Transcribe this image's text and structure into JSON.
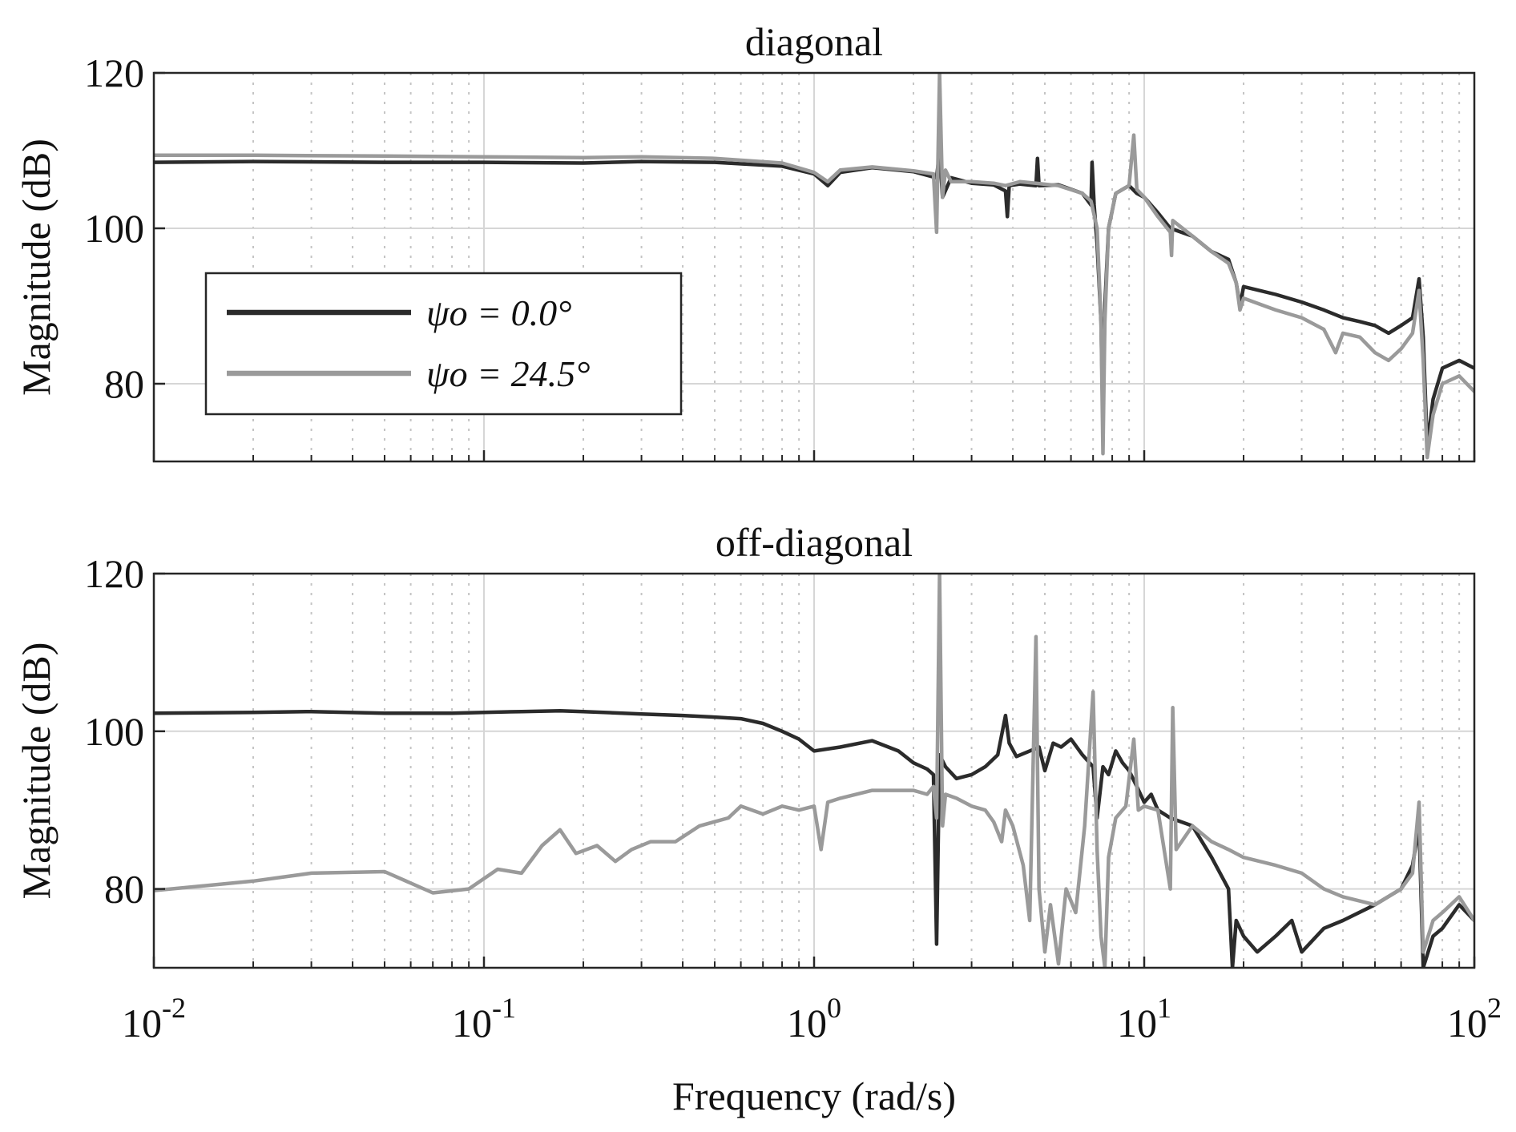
{
  "chart_data": [
    {
      "type": "line",
      "title": "diagonal",
      "xlabel": "",
      "ylabel": "Magnitude (dB)",
      "xscale": "log",
      "xlim": [
        0.01,
        100
      ],
      "ylim": [
        70,
        120
      ],
      "xticks": [
        0.01,
        0.1,
        1,
        10,
        100
      ],
      "xtick_labels": [],
      "yticks": [
        80,
        100,
        120
      ],
      "ytick_labels": [
        "80",
        "100",
        "120"
      ],
      "grid": true,
      "minor_grid": true,
      "legend": {
        "placement": "middle-left",
        "entries": [
          "ψo = 0.0°",
          "ψo = 24.5°"
        ]
      },
      "series": [
        {
          "name": "ψo = 0.0°",
          "color": "#2b2b2b",
          "x": [
            0.01,
            0.02,
            0.05,
            0.1,
            0.2,
            0.3,
            0.5,
            0.8,
            1.0,
            1.1,
            1.2,
            1.5,
            2.0,
            2.35,
            2.4,
            2.45,
            2.6,
            3.0,
            3.5,
            3.8,
            3.85,
            3.9,
            4.2,
            4.7,
            4.75,
            4.8,
            5.5,
            6.5,
            6.9,
            6.95,
            7.05,
            7.2,
            7.4,
            7.5,
            7.6,
            7.8,
            8.2,
            9.0,
            9.5,
            10.0,
            11.0,
            12.0,
            14.0,
            16.0,
            18.0,
            19.0,
            19.5,
            20.0,
            25.0,
            30.0,
            35.0,
            40.0,
            45.0,
            50.0,
            55.0,
            60.0,
            65.0,
            68.0,
            70.0,
            72.0,
            75.0,
            80.0,
            90.0,
            100.0
          ],
          "y": [
            108.5,
            108.6,
            108.5,
            108.5,
            108.4,
            108.6,
            108.5,
            108.0,
            107.0,
            105.5,
            107.2,
            107.8,
            107.3,
            106.5,
            110.0,
            104.0,
            106.5,
            105.8,
            105.6,
            104.8,
            101.5,
            105.5,
            105.7,
            105.5,
            109.0,
            105.5,
            105.6,
            104.5,
            103.0,
            108.5,
            103.0,
            98.0,
            88.0,
            75.0,
            90.0,
            100.0,
            104.5,
            105.5,
            104.5,
            104.0,
            102.0,
            100.0,
            99.0,
            97.0,
            96.0,
            93.0,
            90.0,
            92.5,
            91.5,
            90.5,
            89.5,
            88.5,
            88.0,
            87.5,
            86.5,
            87.5,
            88.5,
            93.5,
            86.0,
            72.0,
            78.0,
            82.0,
            83.0,
            82.0
          ]
        },
        {
          "name": "ψo = 24.5°",
          "color": "#9a9a9a",
          "x": [
            0.01,
            0.02,
            0.05,
            0.1,
            0.2,
            0.3,
            0.5,
            0.8,
            1.0,
            1.1,
            1.2,
            1.5,
            2.0,
            2.3,
            2.35,
            2.4,
            2.45,
            2.5,
            2.6,
            3.0,
            3.5,
            3.8,
            4.2,
            4.7,
            5.5,
            6.5,
            6.9,
            7.2,
            7.4,
            7.5,
            7.6,
            7.8,
            8.2,
            9.0,
            9.3,
            9.5,
            10.0,
            11.0,
            12.0,
            12.1,
            12.2,
            14.0,
            16.0,
            18.0,
            19.0,
            19.5,
            20.0,
            25.0,
            30.0,
            35.0,
            38.0,
            40.0,
            45.0,
            50.0,
            55.0,
            60.0,
            65.0,
            68.0,
            70.0,
            72.0,
            75.0,
            80.0,
            90.0,
            100.0
          ],
          "y": [
            109.4,
            109.4,
            109.3,
            109.2,
            109.1,
            109.2,
            109.0,
            108.4,
            107.2,
            106.0,
            107.5,
            107.9,
            107.4,
            107.0,
            99.5,
            120.0,
            104.0,
            107.5,
            106.0,
            106.0,
            105.8,
            105.5,
            106.0,
            105.8,
            105.5,
            104.5,
            103.5,
            100.0,
            88.0,
            71.0,
            88.0,
            100.0,
            104.5,
            105.5,
            112.0,
            105.0,
            104.0,
            101.5,
            99.5,
            96.5,
            101.0,
            99.0,
            97.0,
            95.5,
            93.0,
            89.5,
            91.0,
            89.5,
            88.5,
            87.0,
            84.0,
            86.5,
            86.0,
            84.0,
            83.0,
            84.5,
            86.5,
            92.0,
            83.0,
            70.5,
            76.0,
            80.0,
            81.0,
            79.0
          ]
        }
      ]
    },
    {
      "type": "line",
      "title": "off-diagonal",
      "xlabel": "Frequency (rad/s)",
      "ylabel": "Magnitude (dB)",
      "xscale": "log",
      "xlim": [
        0.01,
        100
      ],
      "ylim": [
        70,
        120
      ],
      "xticks": [
        0.01,
        0.1,
        1,
        10,
        100
      ],
      "xtick_labels": [
        {
          "base": "10",
          "exp": "-2"
        },
        {
          "base": "10",
          "exp": "-1"
        },
        {
          "base": "10",
          "exp": "0"
        },
        {
          "base": "10",
          "exp": "1"
        },
        {
          "base": "10",
          "exp": "2"
        }
      ],
      "yticks": [
        80,
        100,
        120
      ],
      "ytick_labels": [
        "80",
        "100",
        "120"
      ],
      "grid": true,
      "minor_grid": true,
      "series": [
        {
          "name": "ψo = 0.0°",
          "color": "#2b2b2b",
          "x": [
            0.01,
            0.02,
            0.03,
            0.05,
            0.08,
            0.1,
            0.13,
            0.17,
            0.2,
            0.3,
            0.4,
            0.5,
            0.6,
            0.7,
            0.8,
            0.9,
            1.0,
            1.2,
            1.5,
            1.8,
            2.0,
            2.2,
            2.3,
            2.35,
            2.4,
            2.5,
            2.7,
            3.0,
            3.3,
            3.6,
            3.8,
            3.9,
            4.1,
            4.5,
            4.8,
            5.0,
            5.3,
            5.6,
            6.0,
            6.5,
            7.0,
            7.2,
            7.5,
            7.8,
            8.2,
            8.6,
            9.0,
            9.5,
            10.0,
            10.5,
            11.0,
            12.0,
            14.0,
            16.0,
            18.0,
            18.5,
            19.0,
            20.0,
            22.0,
            25.0,
            28.0,
            30.0,
            35.0,
            40.0,
            50.0,
            60.0,
            65.0,
            68.0,
            70.0,
            75.0,
            80.0,
            90.0,
            100.0
          ],
          "y": [
            102.3,
            102.4,
            102.5,
            102.3,
            102.3,
            102.4,
            102.5,
            102.6,
            102.5,
            102.2,
            102.0,
            101.8,
            101.6,
            101.0,
            100.0,
            99.0,
            97.5,
            98.0,
            98.8,
            97.5,
            96.0,
            95.2,
            94.5,
            73.0,
            97.0,
            95.5,
            94.0,
            94.5,
            95.5,
            97.0,
            102.0,
            98.5,
            96.8,
            97.5,
            98.0,
            95.0,
            98.5,
            98.0,
            99.0,
            97.0,
            95.5,
            89.0,
            95.5,
            94.5,
            97.5,
            96.0,
            95.0,
            93.0,
            91.0,
            92.0,
            90.0,
            89.0,
            88.0,
            84.0,
            80.0,
            70.0,
            76.0,
            74.0,
            72.0,
            74.0,
            76.0,
            72.0,
            75.0,
            76.0,
            78.0,
            80.0,
            83.0,
            88.0,
            70.0,
            74.0,
            75.0,
            78.0,
            76.0
          ]
        },
        {
          "name": "ψo = 24.5°",
          "color": "#9a9a9a",
          "x": [
            0.01,
            0.02,
            0.03,
            0.05,
            0.07,
            0.09,
            0.11,
            0.13,
            0.15,
            0.17,
            0.19,
            0.22,
            0.25,
            0.28,
            0.32,
            0.38,
            0.45,
            0.55,
            0.6,
            0.7,
            0.8,
            0.9,
            1.0,
            1.05,
            1.1,
            1.2,
            1.5,
            2.0,
            2.2,
            2.3,
            2.35,
            2.4,
            2.45,
            2.5,
            2.7,
            3.0,
            3.3,
            3.5,
            3.7,
            3.8,
            4.0,
            4.3,
            4.5,
            4.7,
            4.8,
            5.0,
            5.2,
            5.5,
            5.8,
            6.2,
            6.6,
            7.0,
            7.2,
            7.4,
            7.6,
            7.8,
            8.2,
            8.8,
            9.3,
            9.6,
            10.0,
            11.0,
            12.0,
            12.2,
            12.5,
            14.0,
            16.0,
            18.0,
            20.0,
            25.0,
            30.0,
            35.0,
            40.0,
            50.0,
            60.0,
            65.0,
            68.0,
            70.0,
            75.0,
            80.0,
            90.0,
            100.0
          ],
          "y": [
            79.8,
            81.0,
            82.0,
            82.2,
            79.5,
            80.0,
            82.5,
            82.0,
            85.5,
            87.5,
            84.5,
            85.5,
            83.5,
            85.0,
            86.0,
            86.0,
            88.0,
            89.0,
            90.5,
            89.5,
            90.5,
            90.0,
            90.5,
            85.0,
            91.0,
            91.5,
            92.5,
            92.5,
            92.0,
            93.0,
            89.0,
            120.0,
            88.0,
            92.0,
            91.5,
            90.5,
            90.0,
            88.5,
            86.0,
            90.0,
            88.0,
            83.0,
            76.0,
            112.0,
            80.0,
            72.0,
            78.0,
            70.5,
            80.0,
            77.0,
            88.0,
            105.0,
            85.0,
            74.0,
            70.0,
            84.0,
            89.0,
            90.5,
            99.0,
            90.0,
            90.5,
            90.0,
            80.0,
            103.0,
            85.0,
            88.0,
            86.0,
            85.0,
            84.0,
            83.0,
            82.0,
            80.0,
            79.0,
            78.0,
            80.0,
            82.0,
            91.0,
            72.0,
            76.0,
            77.0,
            79.0,
            76.0
          ]
        }
      ]
    }
  ]
}
